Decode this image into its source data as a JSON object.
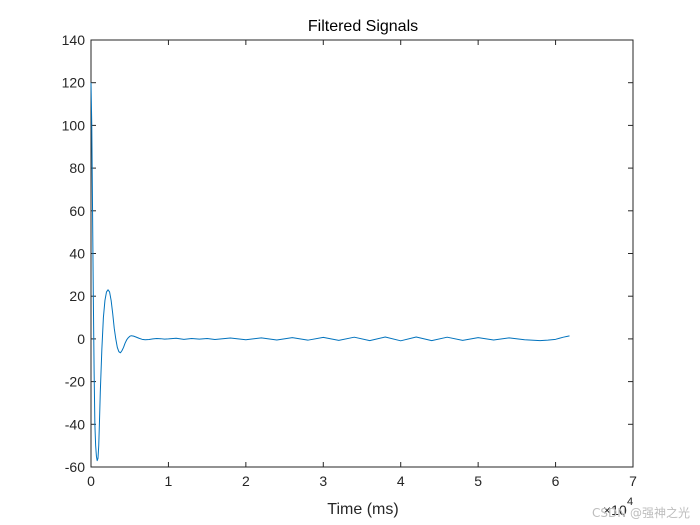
{
  "chart_data": {
    "type": "line",
    "title": "Filtered Signals",
    "xlabel": "Time (ms)",
    "ylabel": "",
    "x_multiplier_label": "×10",
    "x_multiplier_exponent": "4",
    "xlim": [
      0,
      7
    ],
    "ylim": [
      -60,
      140
    ],
    "x_ticks": [
      0,
      1,
      2,
      3,
      4,
      5,
      6,
      7
    ],
    "x_tick_labels": [
      "0",
      "1",
      "2",
      "3",
      "4",
      "5",
      "6",
      "7"
    ],
    "y_ticks": [
      -60,
      -40,
      -20,
      0,
      20,
      40,
      60,
      80,
      100,
      120,
      140
    ],
    "y_tick_labels": [
      "-60",
      "-40",
      "-20",
      "0",
      "20",
      "40",
      "60",
      "80",
      "100",
      "120",
      "140"
    ],
    "grid": false,
    "series": [
      {
        "color": "#0072BD",
        "x": [
          0,
          0.01,
          0.02,
          0.03,
          0.04,
          0.05,
          0.06,
          0.07,
          0.08,
          0.09,
          0.1,
          0.11,
          0.12,
          0.14,
          0.16,
          0.18,
          0.2,
          0.22,
          0.24,
          0.26,
          0.28,
          0.3,
          0.32,
          0.34,
          0.36,
          0.38,
          0.4,
          0.42,
          0.44,
          0.46,
          0.48,
          0.5,
          0.52,
          0.55,
          0.58,
          0.62,
          0.66,
          0.7,
          0.75,
          0.8,
          0.85,
          0.9,
          0.95,
          1.0,
          1.1,
          1.2,
          1.3,
          1.4,
          1.5,
          1.6,
          1.8,
          2.0,
          2.2,
          2.4,
          2.6,
          2.8,
          3.0,
          3.2,
          3.4,
          3.6,
          3.8,
          4.0,
          4.2,
          4.4,
          4.6,
          4.8,
          5.0,
          5.2,
          5.4,
          5.6,
          5.8,
          5.9,
          6.0,
          6.05,
          6.1,
          6.15,
          6.18
        ],
        "y": [
          120,
          100,
          60,
          20,
          -15,
          -40,
          -50,
          -55,
          -57,
          -56,
          -50,
          -38,
          -25,
          -5,
          10,
          18,
          22,
          23,
          22,
          18,
          12,
          5,
          0,
          -4,
          -6,
          -6.5,
          -5.5,
          -4,
          -2,
          -0.5,
          0.5,
          1.2,
          1.5,
          1.3,
          0.9,
          0.3,
          -0.2,
          -0.4,
          -0.3,
          0,
          0.2,
          0.1,
          -0.1,
          0,
          0.3,
          -0.2,
          0.2,
          -0.1,
          0.2,
          -0.3,
          0.4,
          -0.4,
          0.5,
          -0.5,
          0.6,
          -0.6,
          0.7,
          -0.7,
          0.8,
          -0.8,
          0.9,
          -0.9,
          0.9,
          -0.8,
          0.8,
          -0.7,
          0.6,
          -0.5,
          0.5,
          -0.4,
          -0.8,
          -0.6,
          -0.2,
          0.3,
          0.8,
          1.2,
          1.4
        ]
      }
    ]
  },
  "watermark": "CSDN @强神之光"
}
